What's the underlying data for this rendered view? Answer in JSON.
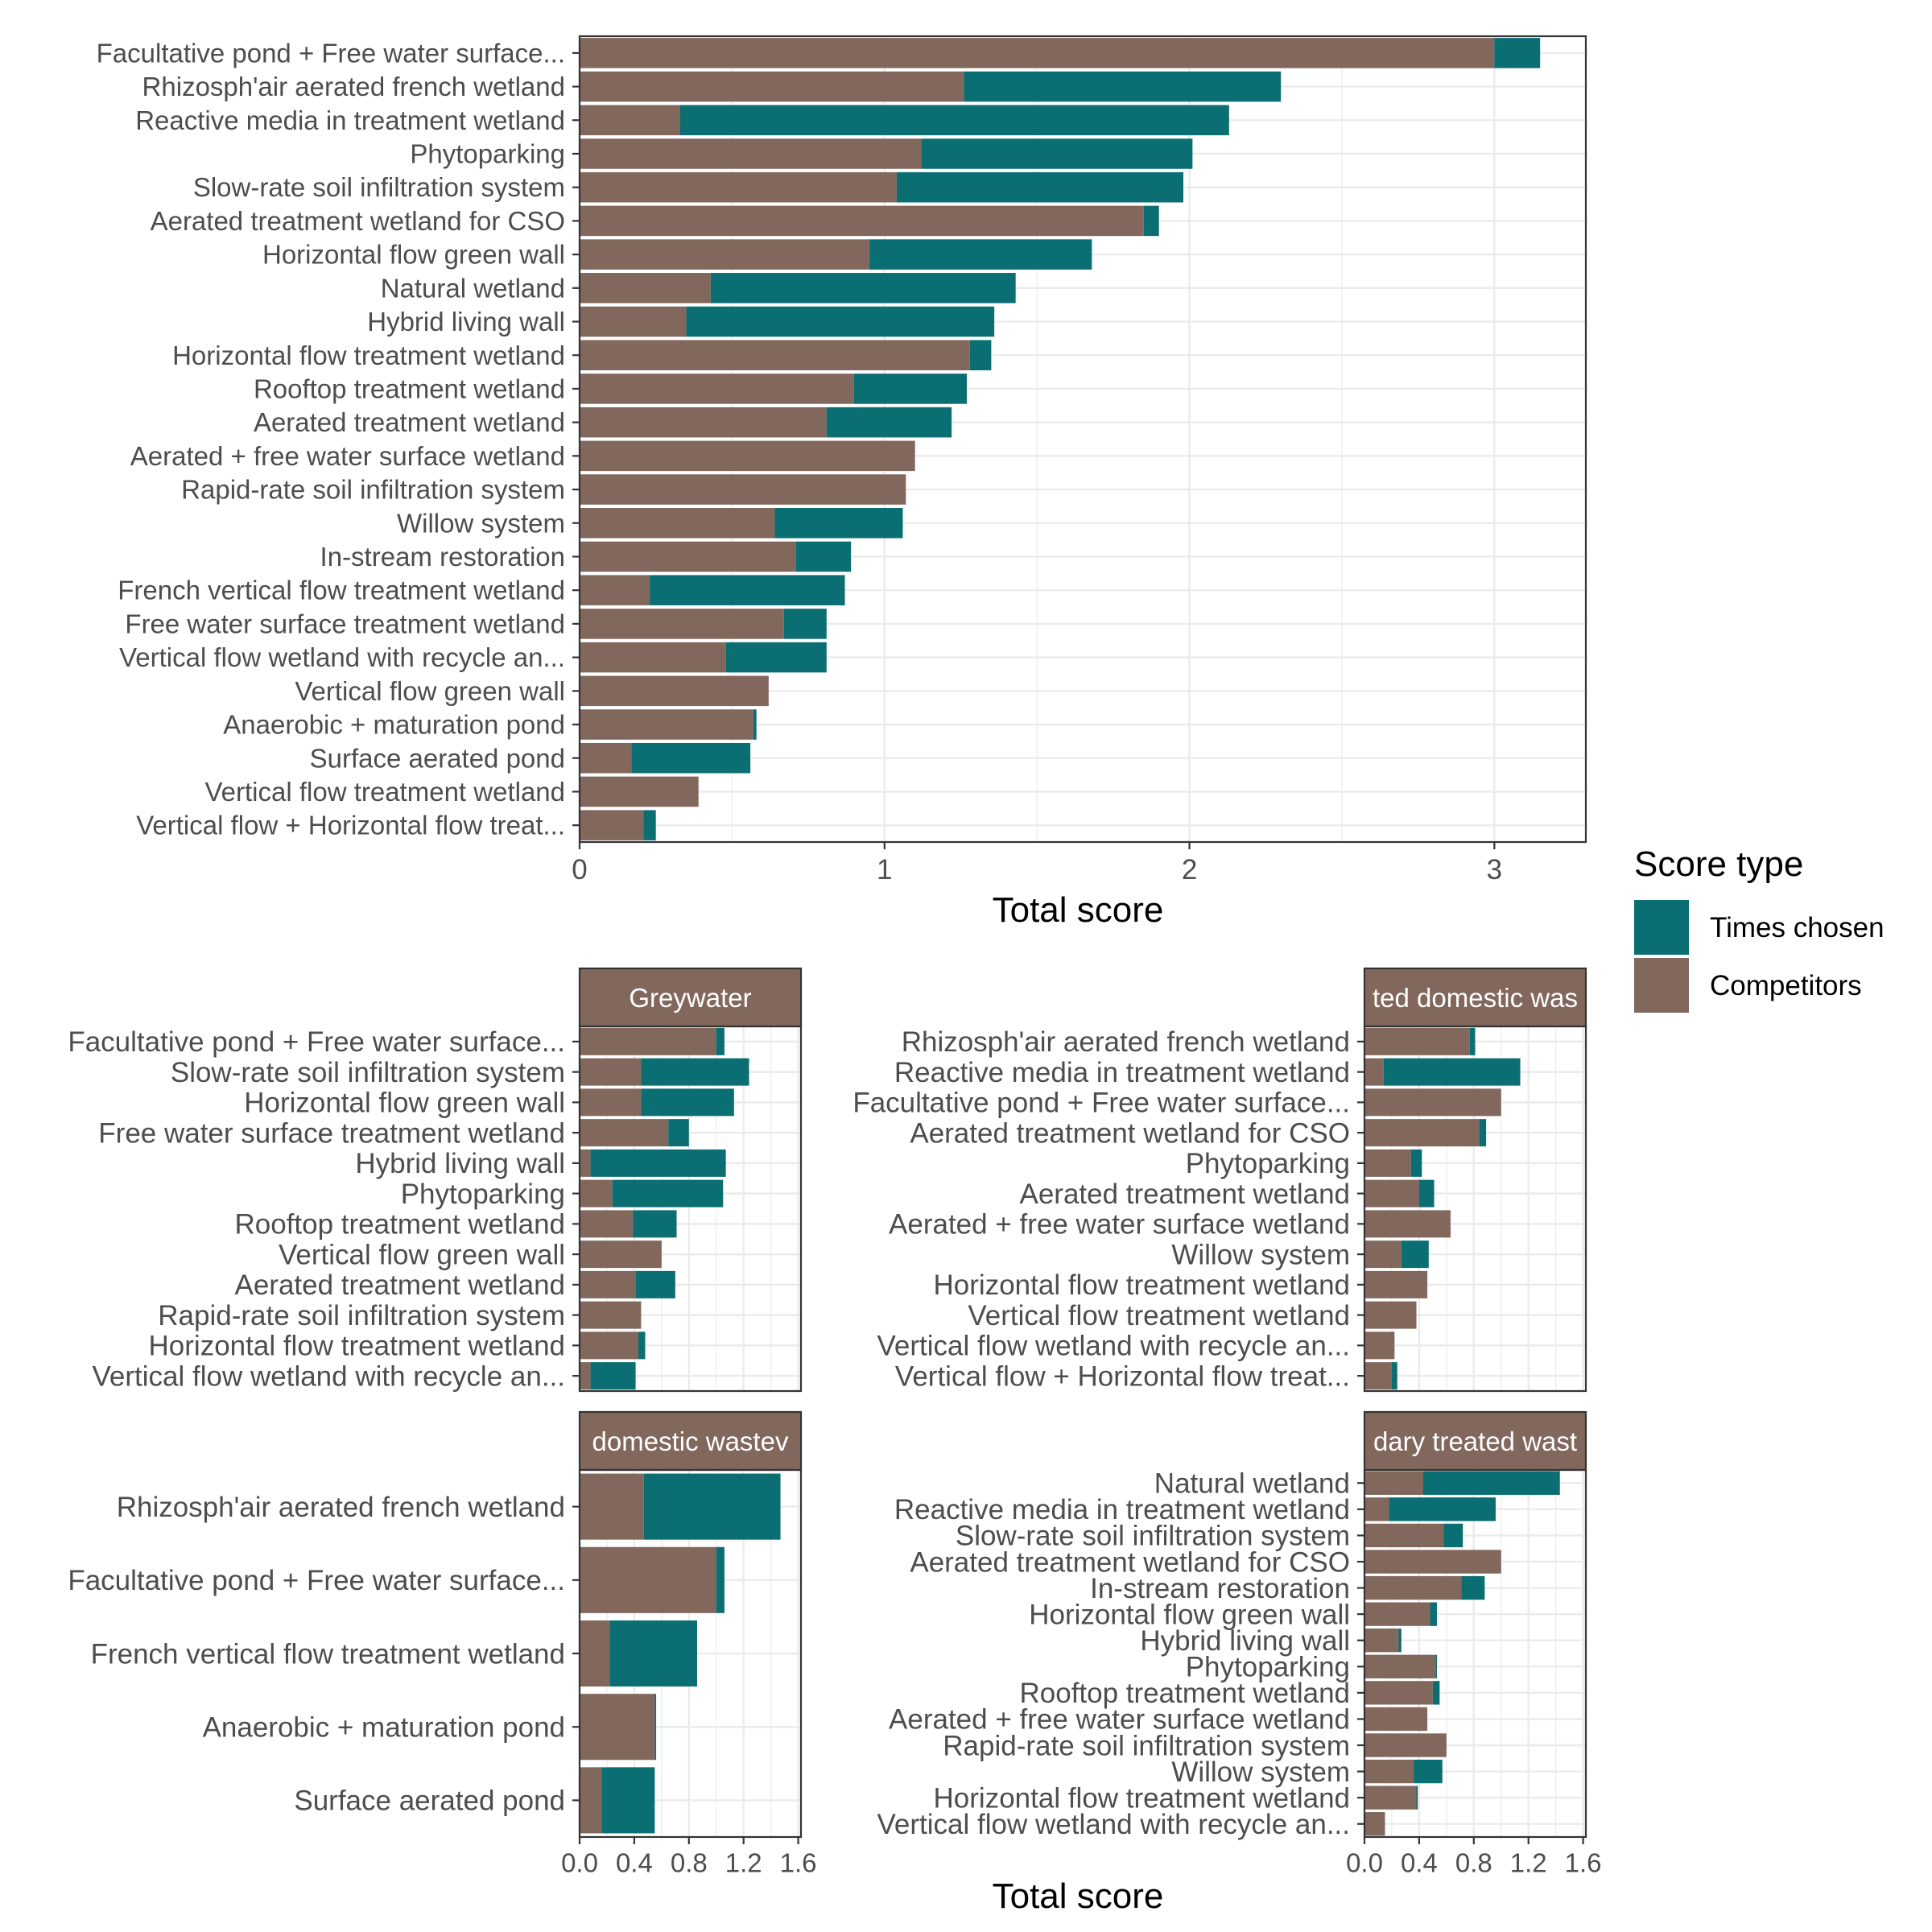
{
  "colors": {
    "times_chosen": "#0a6e73",
    "competitors": "#82675c",
    "grid": "#ebebeb",
    "strip": "#82675c",
    "text": "#4d4d4d"
  },
  "legend": {
    "title": "Score type",
    "items": [
      {
        "label": "Times chosen",
        "color_key": "times_chosen"
      },
      {
        "label": "Competitors",
        "color_key": "competitors"
      }
    ]
  },
  "xlabel_top": "Total score",
  "xlabel_bottom": "Total score",
  "chart_data": [
    {
      "type": "bar",
      "stacked": true,
      "orientation": "horizontal",
      "panel": "overall",
      "xlabel": "Total score",
      "xlim": [
        0,
        3.3
      ],
      "xticks": [
        0,
        1,
        2,
        3
      ],
      "categories": [
        "Facultative pond + Free water surface...",
        "Rhizosph'air aerated french wetland",
        "Reactive media in treatment wetland",
        "Phytoparking",
        "Slow-rate soil infiltration system",
        "Aerated treatment wetland for CSO",
        "Horizontal flow green wall",
        "Natural wetland",
        "Hybrid living wall",
        "Horizontal flow treatment wetland",
        "Rooftop treatment wetland",
        "Aerated treatment wetland",
        "Aerated + free water surface wetland",
        "Rapid-rate soil  infiltration system",
        "Willow system",
        "In-stream restoration",
        "French vertical flow treatment wetland",
        "Free water surface treatment wetland",
        "Vertical flow wetland with recycle an...",
        "Vertical flow green wall",
        "Anaerobic + maturation pond",
        "Surface aerated pond",
        "Vertical flow treatment wetland",
        "Vertical flow + Horizontal flow treat..."
      ],
      "series": [
        {
          "name": "Competitors",
          "values": [
            3.0,
            1.26,
            0.33,
            1.12,
            1.04,
            1.85,
            0.95,
            0.43,
            0.35,
            1.28,
            0.9,
            0.81,
            1.1,
            1.07,
            0.64,
            0.71,
            0.23,
            0.67,
            0.48,
            0.62,
            0.57,
            0.17,
            0.39,
            0.21
          ]
        },
        {
          "name": "Times chosen",
          "values": [
            0.15,
            1.04,
            1.8,
            0.89,
            0.94,
            0.05,
            0.73,
            1.0,
            1.01,
            0.07,
            0.37,
            0.41,
            0.0,
            0.0,
            0.42,
            0.18,
            0.64,
            0.14,
            0.33,
            0.0,
            0.01,
            0.39,
            0.0,
            0.04
          ]
        }
      ]
    },
    {
      "type": "bar",
      "stacked": true,
      "orientation": "horizontal",
      "panel": "Greywater",
      "xlim": [
        0,
        1.62
      ],
      "categories": [
        "Facultative pond + Free water surface...",
        "Slow-rate soil infiltration system",
        "Horizontal flow green wall",
        "Free water surface treatment wetland",
        "Hybrid living wall",
        "Phytoparking",
        "Rooftop treatment wetland",
        "Vertical flow green wall",
        "Aerated treatment wetland",
        "Rapid-rate soil  infiltration system",
        "Horizontal flow treatment wetland",
        "Vertical flow wetland with recycle an..."
      ],
      "series": [
        {
          "name": "Competitors",
          "values": [
            1.0,
            0.45,
            0.45,
            0.65,
            0.08,
            0.24,
            0.39,
            0.6,
            0.41,
            0.45,
            0.43,
            0.08
          ]
        },
        {
          "name": "Times chosen",
          "values": [
            0.06,
            0.79,
            0.68,
            0.15,
            0.99,
            0.81,
            0.32,
            0.0,
            0.29,
            0.0,
            0.05,
            0.33
          ]
        }
      ]
    },
    {
      "type": "bar",
      "stacked": true,
      "orientation": "horizontal",
      "panel": "ted domestic was",
      "xlim": [
        0,
        1.62
      ],
      "categories": [
        "Rhizosph'air aerated french wetland",
        "Reactive media in treatment wetland",
        "Facultative pond + Free water surface...",
        "Aerated treatment wetland for CSO",
        "Phytoparking",
        "Aerated treatment wetland",
        "Aerated + free water surface wetland",
        "Willow system",
        "Horizontal flow treatment wetland",
        "Vertical flow treatment wetland",
        "Vertical flow wetland with recycle an...",
        "Vertical flow + Horizontal flow treat..."
      ],
      "series": [
        {
          "name": "Competitors",
          "values": [
            0.77,
            0.14,
            1.0,
            0.84,
            0.34,
            0.4,
            0.63,
            0.27,
            0.46,
            0.38,
            0.22,
            0.2
          ]
        },
        {
          "name": "Times chosen",
          "values": [
            0.04,
            1.0,
            0.0,
            0.05,
            0.08,
            0.11,
            0.0,
            0.2,
            0.0,
            0.0,
            0.0,
            0.04
          ]
        }
      ]
    },
    {
      "type": "bar",
      "stacked": true,
      "orientation": "horizontal",
      "panel": "domestic wastev",
      "xlim": [
        0,
        1.62
      ],
      "xticks": [
        0.0,
        0.4,
        0.8,
        1.2,
        1.6
      ],
      "categories": [
        "Rhizosph'air aerated french wetland",
        "Facultative pond + Free water surface...",
        "French vertical flow treatment wetland",
        "Anaerobic + maturation pond",
        "Surface aerated pond"
      ],
      "series": [
        {
          "name": "Competitors",
          "values": [
            0.47,
            1.0,
            0.22,
            0.55,
            0.16
          ]
        },
        {
          "name": "Times chosen",
          "values": [
            1.0,
            0.06,
            0.64,
            0.01,
            0.39
          ]
        }
      ]
    },
    {
      "type": "bar",
      "stacked": true,
      "orientation": "horizontal",
      "panel": "dary treated wast",
      "xlim": [
        0,
        1.62
      ],
      "xticks": [
        0.0,
        0.4,
        0.8,
        1.2,
        1.6
      ],
      "categories": [
        "Natural wetland",
        "Reactive media in treatment wetland",
        "Slow-rate soil infiltration system",
        "Aerated treatment wetland for CSO",
        "In-stream restoration",
        "Horizontal flow green wall",
        "Hybrid living wall",
        "Phytoparking",
        "Rooftop treatment wetland",
        "Aerated + free water surface wetland",
        "Rapid-rate soil  infiltration system",
        "Willow system",
        "Horizontal flow treatment wetland",
        "Vertical flow wetland with recycle an..."
      ],
      "series": [
        {
          "name": "Competitors",
          "values": [
            0.43,
            0.18,
            0.58,
            1.0,
            0.71,
            0.48,
            0.25,
            0.52,
            0.5,
            0.46,
            0.6,
            0.36,
            0.38,
            0.15
          ]
        },
        {
          "name": "Times chosen",
          "values": [
            1.0,
            0.78,
            0.14,
            0.0,
            0.17,
            0.05,
            0.02,
            0.01,
            0.05,
            0.0,
            0.0,
            0.21,
            0.01,
            0.0
          ]
        }
      ]
    }
  ]
}
